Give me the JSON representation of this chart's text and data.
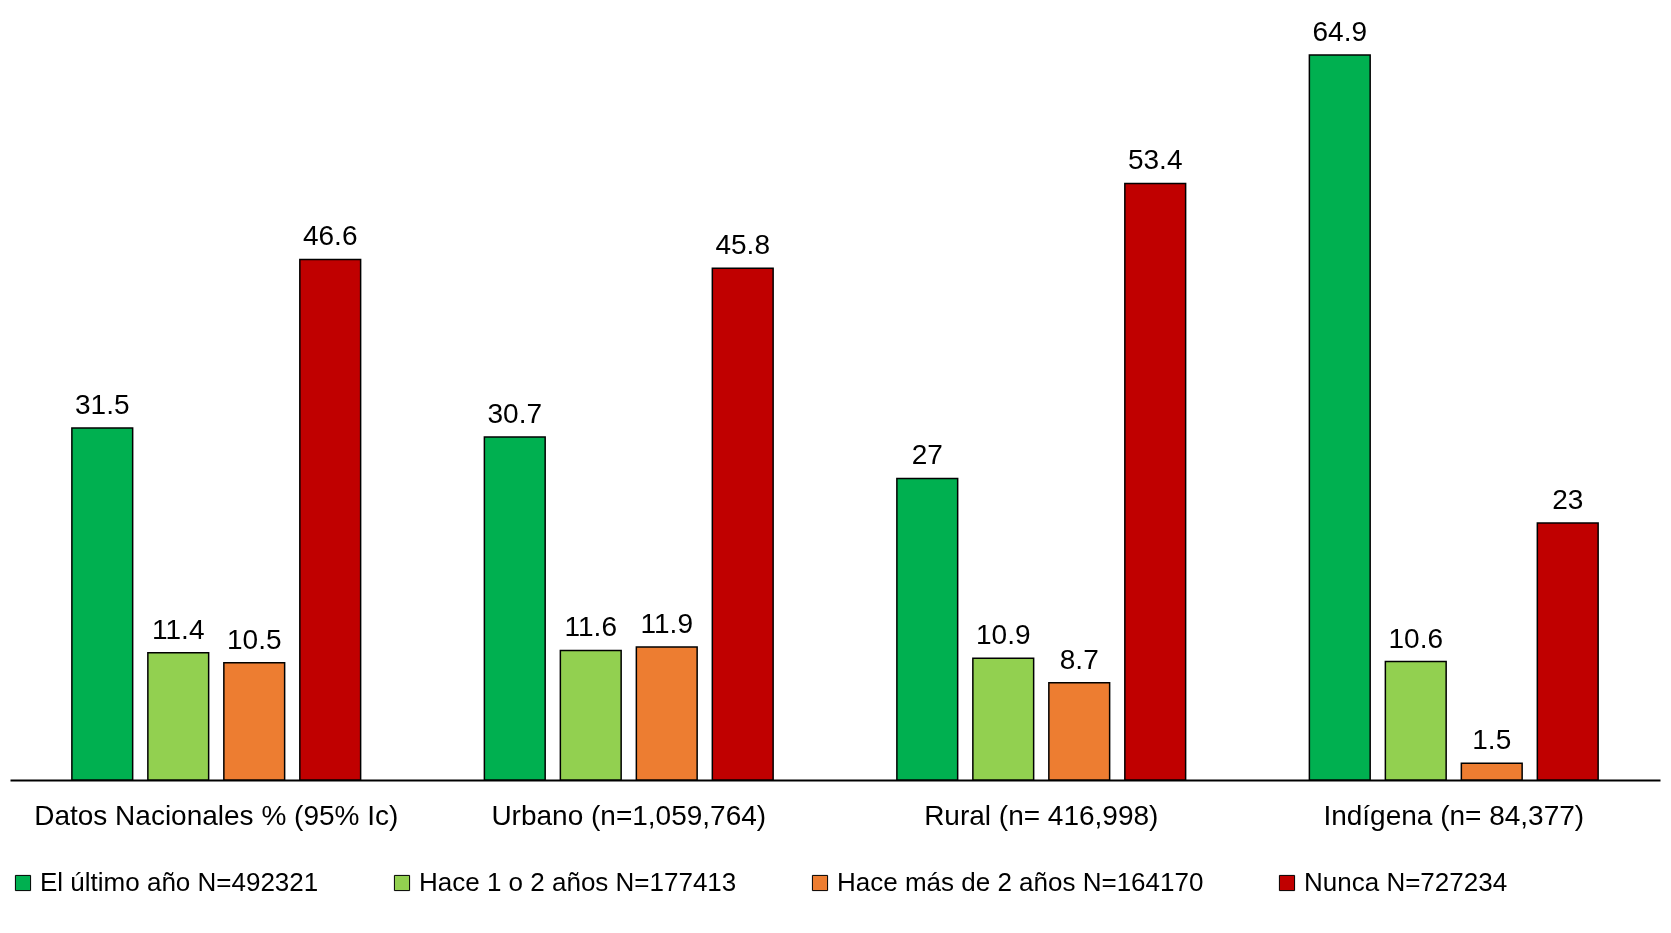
{
  "chart_data": {
    "type": "bar",
    "categories": [
      "Datos Nacionales % (95% Ic)",
      "Urbano (n=1,059,764)",
      "Rural (n= 416,998)",
      "Indígena (n= 84,377)"
    ],
    "series": [
      {
        "name": "El último año N=492321",
        "color": "#00b050",
        "values": [
          31.5,
          30.7,
          27,
          64.9
        ]
      },
      {
        "name": "Hace 1 o 2 años N=177413",
        "color": "#92d050",
        "values": [
          11.4,
          11.6,
          10.9,
          10.6
        ]
      },
      {
        "name": "Hace más de 2 años N=164170",
        "color": "#ed7d31",
        "values": [
          10.5,
          11.9,
          8.7,
          1.5
        ]
      },
      {
        "name": "Nunca N=727234",
        "color": "#c00000",
        "values": [
          46.6,
          45.8,
          53.4,
          23
        ]
      }
    ],
    "data_labels": true,
    "legend": "bottom"
  }
}
